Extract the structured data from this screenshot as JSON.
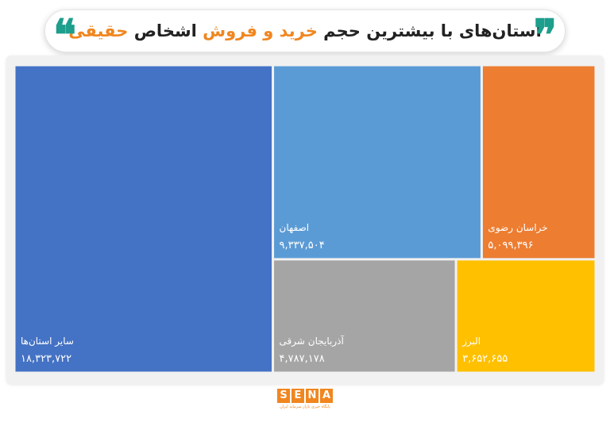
{
  "title": {
    "part1": "استان‌های با بیشترین حجم",
    "part2": "خرید و فروش",
    "part3": "اشخاص",
    "part4": "حقیقی"
  },
  "logo": {
    "letters": [
      "S",
      "E",
      "N",
      "A"
    ],
    "tagline": "پایگاه خبری بازار سرمایه ایران"
  },
  "colors": {
    "blue_dark": "#4472c4",
    "blue_light": "#5b9bd5",
    "orange": "#ed7d31",
    "gray": "#a5a5a5",
    "yellow": "#ffc000",
    "title_orange": "#f0861f",
    "quote_teal": "#1e9e8c"
  },
  "chart_data": {
    "type": "treemap",
    "title": "استان‌های با بیشترین حجم خرید و فروش اشخاص حقیقی",
    "items": [
      {
        "name": "سایر استان‌ها",
        "value": 18323722,
        "label": "۱۸,۳۲۳,۷۲۲",
        "color": "#4472c4"
      },
      {
        "name": "اصفهان",
        "value": 9337504,
        "label": "۹,۳۳۷,۵۰۴",
        "color": "#5b9bd5"
      },
      {
        "name": "خراسان رضوی",
        "value": 5099396,
        "label": "۵,۰۹۹,۳۹۶",
        "color": "#ed7d31"
      },
      {
        "name": "آذربایجان شرقی",
        "value": 4787178,
        "label": "۴,۷۸۷,۱۷۸",
        "color": "#a5a5a5"
      },
      {
        "name": "البرز",
        "value": 3652655,
        "label": "۳,۶۵۲,۶۵۵",
        "color": "#ffc000"
      }
    ]
  }
}
